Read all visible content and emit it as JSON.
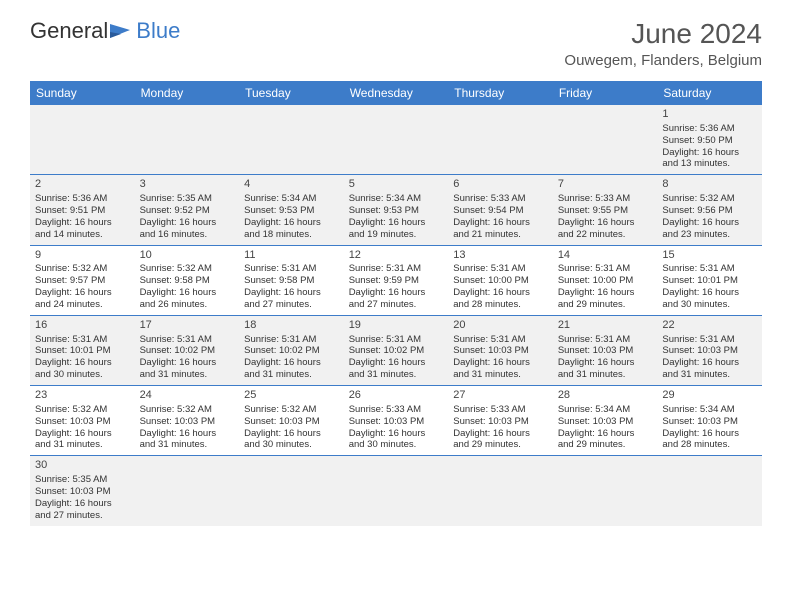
{
  "logo": {
    "text1": "General",
    "text2": "Blue"
  },
  "title": "June 2024",
  "location": "Ouwegem, Flanders, Belgium",
  "colors": {
    "header_bg": "#3d7cc9",
    "header_text": "#ffffff",
    "row_alt_bg": "#f1f1f1",
    "border": "#3d7cc9",
    "logo_blue": "#3d7cc9",
    "text": "#333333"
  },
  "weekdays": [
    "Sunday",
    "Monday",
    "Tuesday",
    "Wednesday",
    "Thursday",
    "Friday",
    "Saturday"
  ],
  "weeks": [
    [
      null,
      null,
      null,
      null,
      null,
      null,
      {
        "day": "1",
        "sunrise": "5:36 AM",
        "sunset": "9:50 PM",
        "daylight": "16 hours and 13 minutes."
      }
    ],
    [
      {
        "day": "2",
        "sunrise": "5:36 AM",
        "sunset": "9:51 PM",
        "daylight": "16 hours and 14 minutes."
      },
      {
        "day": "3",
        "sunrise": "5:35 AM",
        "sunset": "9:52 PM",
        "daylight": "16 hours and 16 minutes."
      },
      {
        "day": "4",
        "sunrise": "5:34 AM",
        "sunset": "9:53 PM",
        "daylight": "16 hours and 18 minutes."
      },
      {
        "day": "5",
        "sunrise": "5:34 AM",
        "sunset": "9:53 PM",
        "daylight": "16 hours and 19 minutes."
      },
      {
        "day": "6",
        "sunrise": "5:33 AM",
        "sunset": "9:54 PM",
        "daylight": "16 hours and 21 minutes."
      },
      {
        "day": "7",
        "sunrise": "5:33 AM",
        "sunset": "9:55 PM",
        "daylight": "16 hours and 22 minutes."
      },
      {
        "day": "8",
        "sunrise": "5:32 AM",
        "sunset": "9:56 PM",
        "daylight": "16 hours and 23 minutes."
      }
    ],
    [
      {
        "day": "9",
        "sunrise": "5:32 AM",
        "sunset": "9:57 PM",
        "daylight": "16 hours and 24 minutes."
      },
      {
        "day": "10",
        "sunrise": "5:32 AM",
        "sunset": "9:58 PM",
        "daylight": "16 hours and 26 minutes."
      },
      {
        "day": "11",
        "sunrise": "5:31 AM",
        "sunset": "9:58 PM",
        "daylight": "16 hours and 27 minutes."
      },
      {
        "day": "12",
        "sunrise": "5:31 AM",
        "sunset": "9:59 PM",
        "daylight": "16 hours and 27 minutes."
      },
      {
        "day": "13",
        "sunrise": "5:31 AM",
        "sunset": "10:00 PM",
        "daylight": "16 hours and 28 minutes."
      },
      {
        "day": "14",
        "sunrise": "5:31 AM",
        "sunset": "10:00 PM",
        "daylight": "16 hours and 29 minutes."
      },
      {
        "day": "15",
        "sunrise": "5:31 AM",
        "sunset": "10:01 PM",
        "daylight": "16 hours and 30 minutes."
      }
    ],
    [
      {
        "day": "16",
        "sunrise": "5:31 AM",
        "sunset": "10:01 PM",
        "daylight": "16 hours and 30 minutes."
      },
      {
        "day": "17",
        "sunrise": "5:31 AM",
        "sunset": "10:02 PM",
        "daylight": "16 hours and 31 minutes."
      },
      {
        "day": "18",
        "sunrise": "5:31 AM",
        "sunset": "10:02 PM",
        "daylight": "16 hours and 31 minutes."
      },
      {
        "day": "19",
        "sunrise": "5:31 AM",
        "sunset": "10:02 PM",
        "daylight": "16 hours and 31 minutes."
      },
      {
        "day": "20",
        "sunrise": "5:31 AM",
        "sunset": "10:03 PM",
        "daylight": "16 hours and 31 minutes."
      },
      {
        "day": "21",
        "sunrise": "5:31 AM",
        "sunset": "10:03 PM",
        "daylight": "16 hours and 31 minutes."
      },
      {
        "day": "22",
        "sunrise": "5:31 AM",
        "sunset": "10:03 PM",
        "daylight": "16 hours and 31 minutes."
      }
    ],
    [
      {
        "day": "23",
        "sunrise": "5:32 AM",
        "sunset": "10:03 PM",
        "daylight": "16 hours and 31 minutes."
      },
      {
        "day": "24",
        "sunrise": "5:32 AM",
        "sunset": "10:03 PM",
        "daylight": "16 hours and 31 minutes."
      },
      {
        "day": "25",
        "sunrise": "5:32 AM",
        "sunset": "10:03 PM",
        "daylight": "16 hours and 30 minutes."
      },
      {
        "day": "26",
        "sunrise": "5:33 AM",
        "sunset": "10:03 PM",
        "daylight": "16 hours and 30 minutes."
      },
      {
        "day": "27",
        "sunrise": "5:33 AM",
        "sunset": "10:03 PM",
        "daylight": "16 hours and 29 minutes."
      },
      {
        "day": "28",
        "sunrise": "5:34 AM",
        "sunset": "10:03 PM",
        "daylight": "16 hours and 29 minutes."
      },
      {
        "day": "29",
        "sunrise": "5:34 AM",
        "sunset": "10:03 PM",
        "daylight": "16 hours and 28 minutes."
      }
    ],
    [
      {
        "day": "30",
        "sunrise": "5:35 AM",
        "sunset": "10:03 PM",
        "daylight": "16 hours and 27 minutes."
      },
      null,
      null,
      null,
      null,
      null,
      null
    ]
  ],
  "labels": {
    "sunrise": "Sunrise:",
    "sunset": "Sunset:",
    "daylight": "Daylight:"
  }
}
